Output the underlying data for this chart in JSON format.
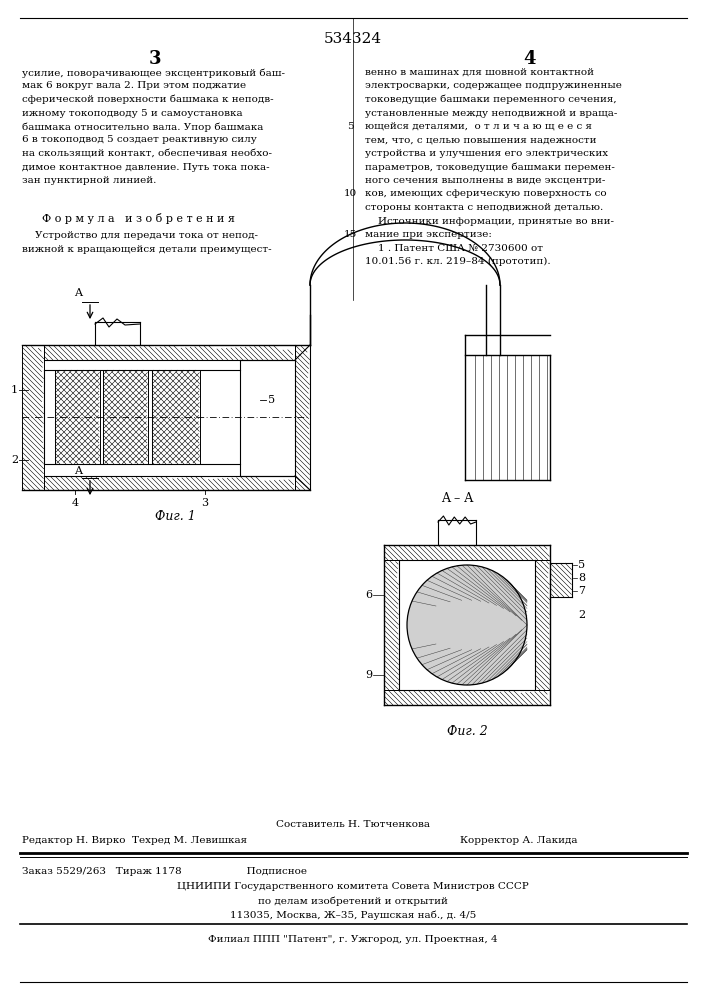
{
  "patent_number": "534324",
  "page_left_number": "3",
  "page_right_number": "4",
  "left_column_text": [
    "усилие, поворачивающее эксцентриковый баш-",
    "мак 6 вокруг вала 2. При этом поджатие",
    "сферической поверхности башмака к неподв-",
    "ижному токоподводу 5 и самоустановка",
    "башмака относительно вала. Упор башмака",
    "6 в токоподвод 5 создает реактивную силу",
    "на скользящий контакт, обеспечивая необхо-",
    "димое контактное давление. Путь тока пока-",
    "зан пунктирной линией."
  ],
  "formula_header": "Ф о р м у л а   и з о б р е т е н и я",
  "formula_text": [
    "    Устройство для передачи тока от непод-",
    "вижной к вращающейся детали преимущест-"
  ],
  "right_column_text": [
    "венно в машинах для шовной контактной",
    "электросварки, содержащее подпружиненные",
    "токоведущие башмаки переменного сечения,",
    "установленные между неподвижной и враща-",
    "ющейся деталями,  о т л и ч а ю щ е е с я",
    "тем, что, с целью повышения надежности",
    "устройства и улучшения его электрических",
    "параметров, токоведущие башмаки перемен-",
    "ного сечения выполнены в виде эксцентри-",
    "ков, имеющих сферическую поверхность со",
    "стороны контакта с неподвижной деталью."
  ],
  "sources_header": "    Источники информации, принятые во вни-",
  "sources_text": [
    "мание при экспертизе:",
    "    1 . Патент США № 2730600 от",
    "10.01.56 г. кл. 219–84 (прототип)."
  ],
  "fig1_label": "Фиг. 1",
  "fig2_label": "Фиг. 2",
  "fig1_section_label": "A – A",
  "author_line": "Составитель Н. Тютченкова",
  "editor_line": "Редактор Н. Вирко  Техред М. Левишкая",
  "corrector_line": "Корректор А. Лакида",
  "order_line": "Заказ 5529/263   Тираж 1178                    Подписное",
  "cniiipi_line": "ЦНИИПИ Государственного комитета Совета Министров СССР",
  "cniiipi_line2": "по делам изобретений и открытий",
  "address_line": "113035, Москва, Ж–35, Раушская наб., д. 4/5",
  "filial_line": "Филиал ППП \"Патент\", г. Ужгород, ул. Проектная, 4",
  "bg_color": "#ffffff",
  "text_color": "#000000"
}
